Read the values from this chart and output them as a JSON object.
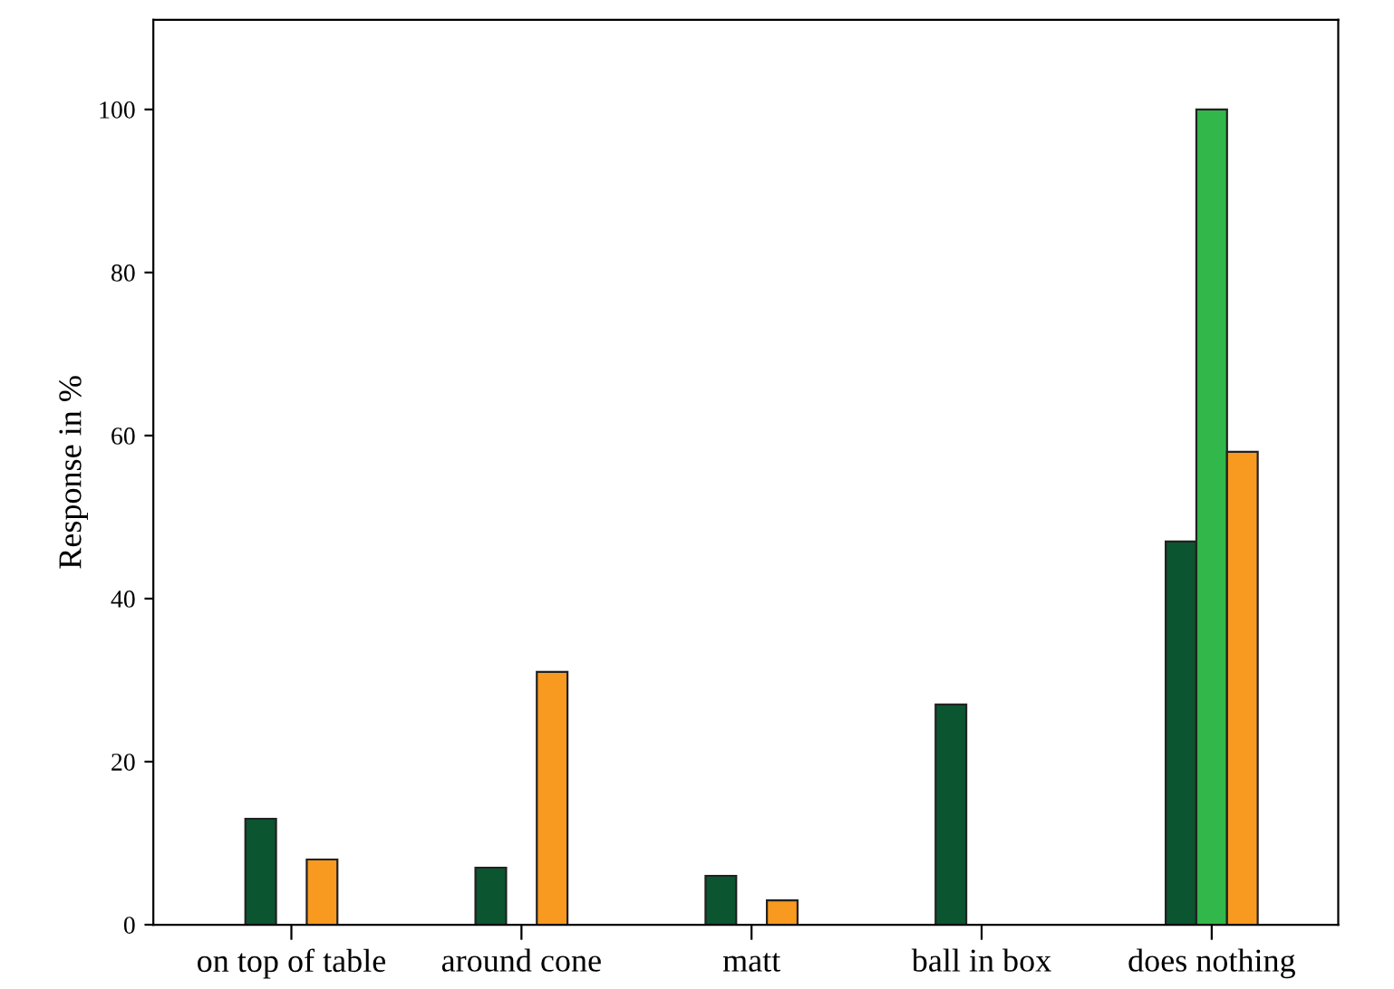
{
  "chart_data": {
    "type": "bar",
    "ylabel": "Response in %",
    "categories": [
      "on top of table",
      "around cone",
      "matt",
      "ball in box",
      "does nothing"
    ],
    "series": [
      {
        "color": "#0b5530",
        "values": [
          13,
          7,
          6,
          27,
          47
        ]
      },
      {
        "color": "#32b84a",
        "values": [
          0,
          0,
          0,
          0,
          100
        ]
      },
      {
        "color": "#f89a1f",
        "values": [
          8,
          31,
          3,
          0,
          58
        ]
      }
    ],
    "ylim": [
      0,
      111
    ],
    "yticks": [
      0,
      20,
      40,
      60,
      80,
      100
    ],
    "grid": false,
    "legend": false
  }
}
